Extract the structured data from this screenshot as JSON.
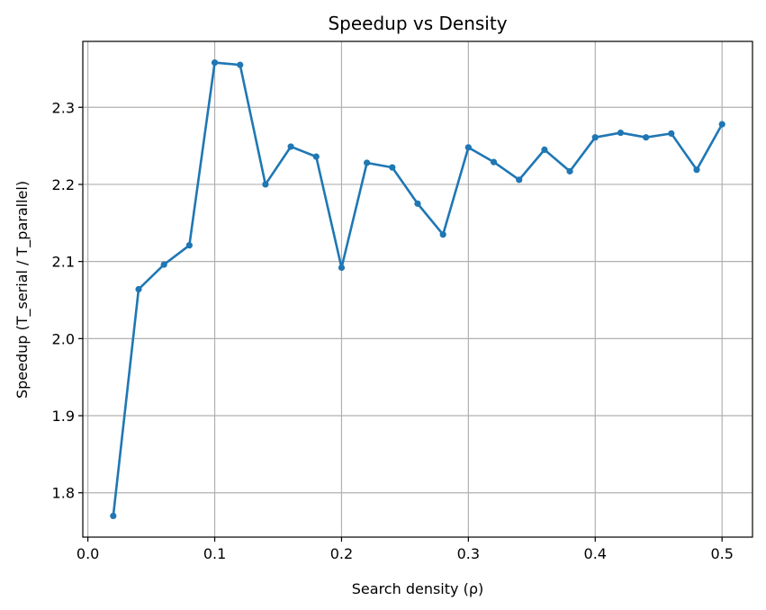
{
  "chart_data": {
    "type": "line",
    "title": "Speedup vs Density",
    "xlabel": "Search density (ρ)",
    "ylabel": "Speedup (T_serial / T_parallel)",
    "xlim": [
      -0.004,
      0.524
    ],
    "ylim": [
      1.7425,
      2.3855
    ],
    "xticks": [
      0.0,
      0.1,
      0.2,
      0.3,
      0.4,
      0.5
    ],
    "xtick_labels": [
      "0.0",
      "0.1",
      "0.2",
      "0.3",
      "0.4",
      "0.5"
    ],
    "yticks": [
      1.8,
      1.9,
      2.0,
      2.1,
      2.2,
      2.3
    ],
    "ytick_labels": [
      "1.8",
      "1.9",
      "2.0",
      "2.1",
      "2.2",
      "2.3"
    ],
    "grid": true,
    "color": "#1f77b4",
    "series": [
      {
        "x": [
          0.02,
          0.04,
          0.06,
          0.08,
          0.1,
          0.12,
          0.14,
          0.16,
          0.18,
          0.2,
          0.22,
          0.24,
          0.26,
          0.28,
          0.3,
          0.32,
          0.34,
          0.36,
          0.38,
          0.4,
          0.42,
          0.44,
          0.46,
          0.48,
          0.5
        ],
        "values": [
          1.77,
          2.064,
          2.096,
          2.121,
          2.358,
          2.355,
          2.2,
          2.249,
          2.236,
          2.092,
          2.228,
          2.222,
          2.175,
          2.135,
          2.248,
          2.229,
          2.206,
          2.245,
          2.217,
          2.261,
          2.267,
          2.261,
          2.266,
          2.219,
          2.278
        ],
        "marker": "circle"
      }
    ]
  }
}
